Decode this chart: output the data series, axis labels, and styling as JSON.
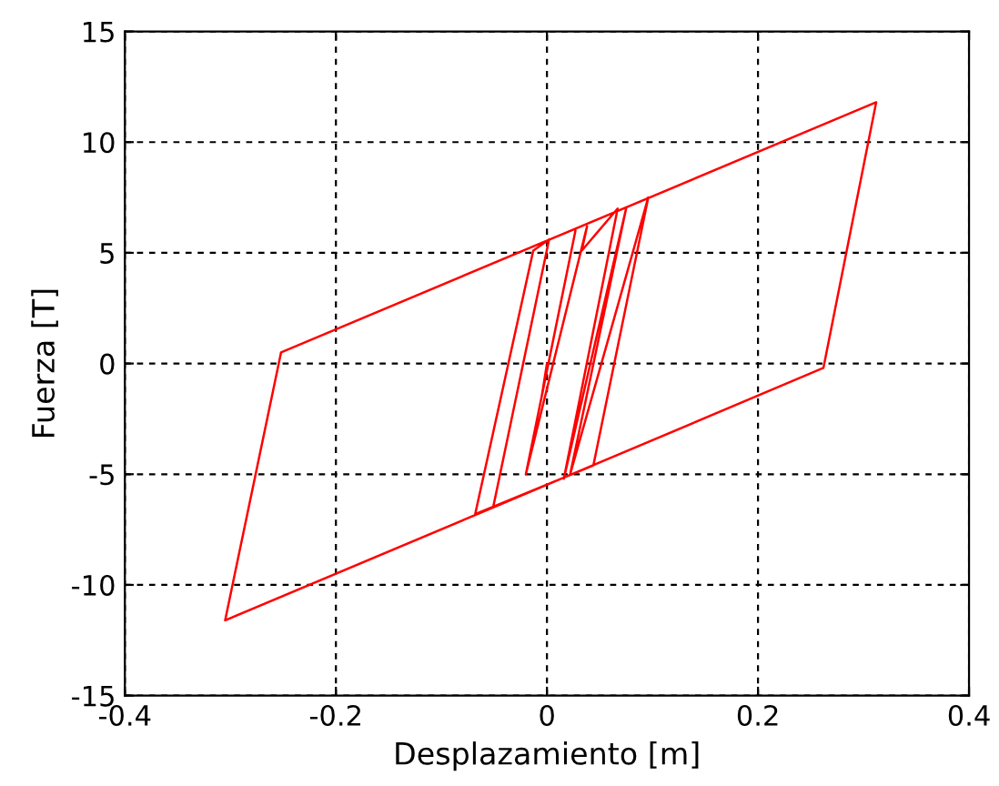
{
  "chart_data": {
    "type": "line",
    "xlabel": "Desplazamiento [m]",
    "ylabel": "Fuerza [T]",
    "xlim": [
      -0.4,
      0.4
    ],
    "ylim": [
      -15,
      15
    ],
    "xticks": [
      -0.4,
      -0.2,
      0,
      0.2,
      0.4
    ],
    "yticks": [
      -15,
      -10,
      -5,
      0,
      5,
      10,
      15
    ],
    "grid": true,
    "marker": "none",
    "line_style": "solid",
    "series": [
      {
        "color": "#ff0000",
        "x": [
          0,
          -0.005,
          0.027,
          -0.02,
          0.038,
          0.033,
          0.067,
          0.016,
          0.075,
          0.022,
          0.096,
          0.044,
          -0.068,
          -0.013,
          0.002,
          -0.051,
          0.262,
          0.312,
          -0.252,
          -0.305,
          -0.051
        ],
        "values": [
          0,
          -1.5,
          6.0,
          -5.0,
          6.2,
          5.1,
          7.0,
          -5.2,
          7.0,
          -5.0,
          7.5,
          -4.6,
          -6.8,
          5.1,
          5.6,
          -6.5,
          -0.2,
          11.8,
          0.5,
          -11.6,
          -6.5
        ]
      }
    ]
  }
}
